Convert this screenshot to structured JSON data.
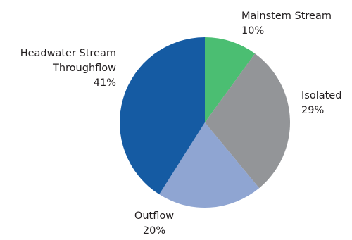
{
  "chart_data": {
    "type": "pie",
    "title": "",
    "start_angle_deg": 0,
    "direction": "clockwise",
    "slices": [
      {
        "label_lines": [
          "Mainstem Stream"
        ],
        "value_label": "10%",
        "value": 10,
        "color": "#4bbe72"
      },
      {
        "label_lines": [
          "Isolated"
        ],
        "value_label": "29%",
        "value": 29,
        "color": "#939598"
      },
      {
        "label_lines": [
          "Outflow"
        ],
        "value_label": "20%",
        "value": 20,
        "color": "#8fa5d2"
      },
      {
        "label_lines": [
          "Headwater Stream",
          "Throughflow"
        ],
        "value_label": "41%",
        "value": 41,
        "color": "#155ba3"
      }
    ]
  }
}
